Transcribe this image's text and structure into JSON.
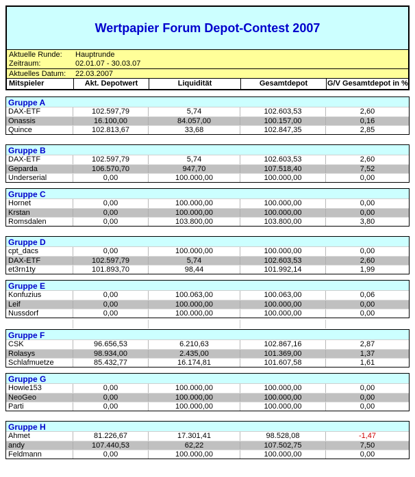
{
  "title": "Wertpapier Forum Depot-Contest 2007",
  "info": {
    "rows": [
      {
        "label": "Aktuelle Runde:",
        "value": "Hauptrunde"
      },
      {
        "label": "Zeitraum:",
        "value": "02.01.07 - 30.03.07"
      },
      {
        "label": "Aktuelles Datum:",
        "value": "22.03.2007"
      }
    ]
  },
  "columns": [
    "Mitspieler",
    "Akt. Depotwert",
    "Liquidität",
    "Gesamtdepot",
    "G/V Gesamtdepot in %"
  ],
  "groups": [
    {
      "name": "Gruppe A",
      "rows": [
        [
          "DAX-ETF",
          "102.597,79",
          "5,74",
          "102.603,53",
          "2,60"
        ],
        [
          "Onassis",
          "16.100,00",
          "84.057,00",
          "100.157,00",
          "0,16"
        ],
        [
          "Quince",
          "102.813,67",
          "33,68",
          "102.847,35",
          "2,85"
        ]
      ]
    },
    {
      "name": "Gruppe B",
      "rows": [
        [
          "DAX-ETF",
          "102.597,79",
          "5,74",
          "102.603,53",
          "2,60"
        ],
        [
          "Geparda",
          "106.570,70",
          "947,70",
          "107.518,40",
          "7,52"
        ],
        [
          "Underserial",
          "0,00",
          "100.000,00",
          "100.000,00",
          "0,00"
        ]
      ]
    },
    {
      "name": "Gruppe C",
      "rows": [
        [
          "Hornet",
          "0,00",
          "100.000,00",
          "100.000,00",
          "0,00"
        ],
        [
          "Krstan",
          "0,00",
          "100.000,00",
          "100.000,00",
          "0,00"
        ],
        [
          "Romsdalen",
          "0,00",
          "103.800,00",
          "103.800,00",
          "3,80"
        ]
      ]
    },
    {
      "name": "Gruppe D",
      "rows": [
        [
          "cpt_dacs",
          "0,00",
          "100.000,00",
          "100.000,00",
          "0,00"
        ],
        [
          "DAX-ETF",
          "102.597,79",
          "5,74",
          "102.603,53",
          "2,60"
        ],
        [
          "et3rn1ty",
          "101.893,70",
          "98,44",
          "101.992,14",
          "1,99"
        ]
      ]
    },
    {
      "name": "Gruppe E",
      "spacer_after": true,
      "rows": [
        [
          "Konfuzius",
          "0,00",
          "100.063,00",
          "100.063,00",
          "0,06"
        ],
        [
          "Leif",
          "0,00",
          "100.000,00",
          "100.000,00",
          "0,00"
        ],
        [
          "Nussdorf",
          "0,00",
          "100.000,00",
          "100.000,00",
          "0,00"
        ]
      ]
    },
    {
      "name": "Gruppe F",
      "rows": [
        [
          "CSK",
          "96.656,53",
          "6.210,63",
          "102.867,16",
          "2,87"
        ],
        [
          "Rolasys",
          "98.934,00",
          "2.435,00",
          "101.369,00",
          "1,37"
        ],
        [
          "Schlafmuetze",
          "85.432,77",
          "16.174,81",
          "101.607,58",
          "1,61"
        ]
      ]
    },
    {
      "name": "Gruppe G",
      "rows": [
        [
          "Howie153",
          "0,00",
          "100.000,00",
          "100.000,00",
          "0,00"
        ],
        [
          "NeoGeo",
          "0,00",
          "100.000,00",
          "100.000,00",
          "0,00"
        ],
        [
          "Parti",
          "0,00",
          "100.000,00",
          "100.000,00",
          "0,00"
        ]
      ]
    },
    {
      "name": "Gruppe H",
      "rows": [
        [
          "Ahmet",
          "81.226,67",
          "17.301,41",
          "98.528,08",
          "-1,47"
        ],
        [
          "andy",
          "107.440,53",
          "62,22",
          "107.502,75",
          "7,50"
        ],
        [
          "Feldmann",
          "0,00",
          "100.000,00",
          "100.000,00",
          "0,00"
        ]
      ]
    }
  ],
  "colors": {
    "accent_blue": "#0000cc",
    "banner_bg": "#ccffff",
    "group_header_bg": "#ccffff",
    "info_bg": "#ffff99",
    "highlight_row_bg": "#c0c0c0",
    "negative_red": "#cc0000"
  }
}
